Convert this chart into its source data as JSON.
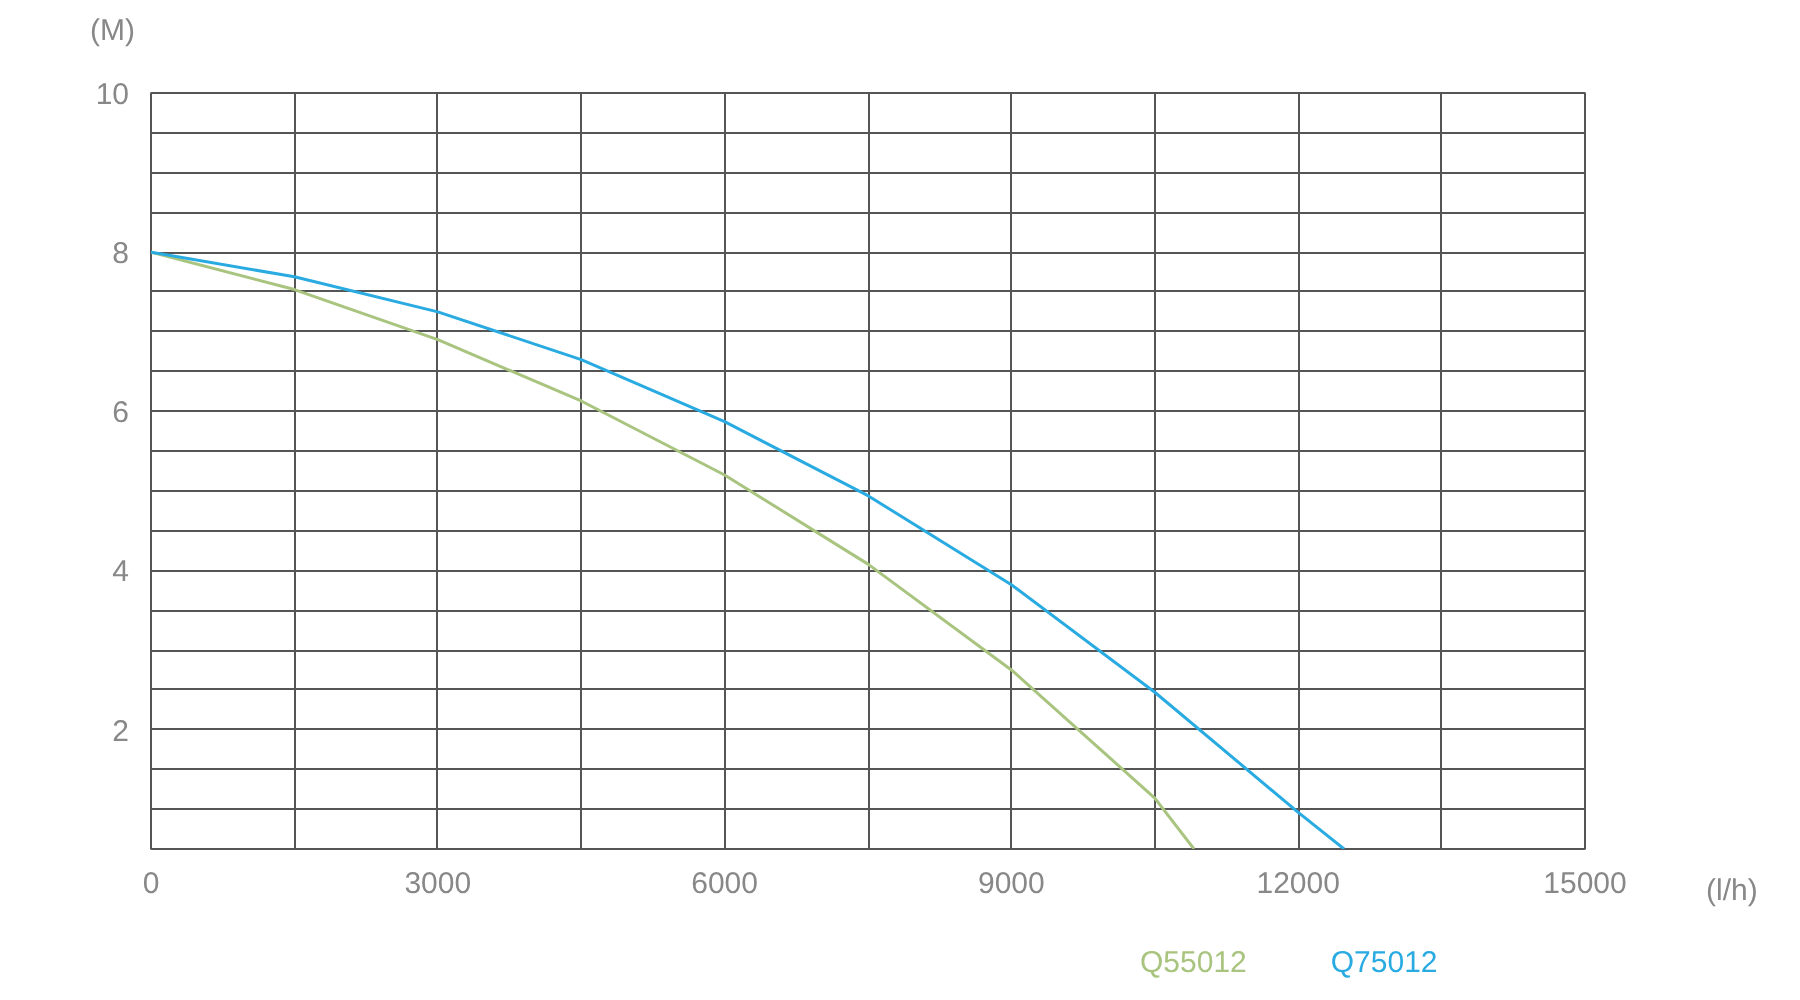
{
  "chart_data": {
    "type": "line",
    "xlabel": "(l/h)",
    "ylabel": "(M)",
    "xlim": [
      0,
      15000
    ],
    "ylim": [
      0.5,
      10
    ],
    "xticks": [
      0,
      {
        "value": 1500,
        "label": null
      },
      3000,
      {
        "value": 4500,
        "label": null
      },
      6000,
      {
        "value": 7500,
        "label": null
      },
      9000,
      {
        "value": 10500,
        "label": null
      },
      12000,
      {
        "value": 13500,
        "label": null
      },
      15000
    ],
    "yticks": [
      {
        "value": 0.5,
        "label": null
      },
      {
        "value": 1,
        "label": null
      },
      {
        "value": 1.5,
        "label": null
      },
      2,
      {
        "value": 2.5,
        "label": null
      },
      {
        "value": 3,
        "label": null
      },
      {
        "value": 3.5,
        "label": null
      },
      4,
      {
        "value": 4.5,
        "label": null
      },
      {
        "value": 5,
        "label": null
      },
      {
        "value": 5.5,
        "label": null
      },
      6,
      {
        "value": 6.5,
        "label": null
      },
      {
        "value": 7,
        "label": null
      },
      {
        "value": 7.5,
        "label": null
      },
      8,
      {
        "value": 8.5,
        "label": null
      },
      {
        "value": 9,
        "label": null
      },
      {
        "value": 9.5,
        "label": null
      },
      10
    ],
    "grid": true,
    "marker": "none",
    "line_style": "solid",
    "series": [
      {
        "name": "Q55012",
        "color": "#a8c47e",
        "x": [
          0,
          1500,
          3000,
          4500,
          6000,
          7500,
          9000,
          10500,
          10910
        ],
        "values": [
          8.0,
          7.53,
          6.9,
          6.13,
          5.2,
          4.08,
          2.75,
          1.14,
          0.5
        ]
      },
      {
        "name": "Q75012",
        "color": "#29abe2",
        "x": [
          0,
          1500,
          3000,
          4500,
          6000,
          7500,
          9000,
          10500,
          12000,
          12480
        ],
        "values": [
          8.0,
          7.69,
          7.25,
          6.65,
          5.87,
          4.94,
          3.82,
          2.47,
          0.96,
          0.5
        ]
      }
    ]
  }
}
